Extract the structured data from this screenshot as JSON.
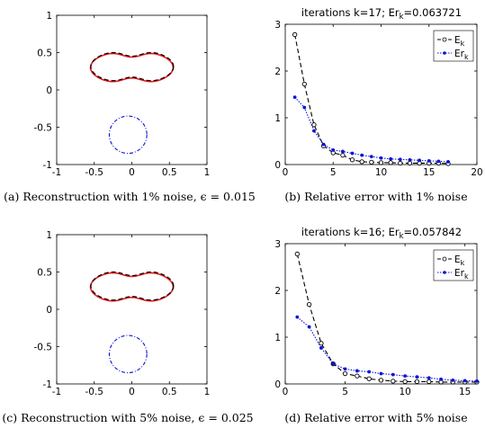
{
  "chart_data": [
    {
      "id": "a",
      "type": "line",
      "caption": "(a) Reconstruction with 1% noise, ϵ = 0.015",
      "xlim": [
        -1,
        1
      ],
      "ylim": [
        -1,
        1
      ],
      "xticks": [
        "-1",
        "-0.5",
        "0",
        "0.5",
        "1"
      ],
      "yticks": [
        "1",
        "0.5",
        "0",
        "-0.5",
        "-1"
      ],
      "shape": {
        "cx": 0,
        "cy": 0.3,
        "a": 0.55,
        "b": 0.23,
        "waist": 0.09
      },
      "circle": {
        "cx": -0.05,
        "cy": -0.6,
        "r": 0.25
      },
      "colors": {
        "exact": "#e8191c",
        "reconstructed": "#000000",
        "circle": "#0a14d8"
      }
    },
    {
      "id": "b",
      "type": "line",
      "title": "iterations k=17; Er",
      "title_sub": "k",
      "title_tail": "=0.063721",
      "caption": "(b) Relative error with 1% noise",
      "xlim": [
        0,
        20
      ],
      "ylim": [
        0,
        3
      ],
      "xticks": [
        "0",
        "5",
        "10",
        "15",
        "20"
      ],
      "yticks": [
        "3",
        "2",
        "1",
        "0"
      ],
      "legend": [
        {
          "base": "E",
          "sub": "k"
        },
        {
          "base": "Er",
          "sub": "k"
        }
      ],
      "legend_position": "top-right",
      "x": [
        1,
        2,
        3,
        4,
        5,
        6,
        7,
        8,
        9,
        10,
        11,
        12,
        13,
        14,
        15,
        16,
        17
      ],
      "series": [
        {
          "values": [
            2.78,
            1.72,
            0.85,
            0.4,
            0.25,
            0.2,
            0.1,
            0.06,
            0.05,
            0.04,
            0.04,
            0.03,
            0.03,
            0.03,
            0.03,
            0.03,
            0.02
          ],
          "color": "#000000",
          "style": "dashed",
          "marker": "circle"
        },
        {
          "values": [
            1.44,
            1.22,
            0.72,
            0.43,
            0.31,
            0.28,
            0.24,
            0.2,
            0.17,
            0.14,
            0.12,
            0.11,
            0.1,
            0.09,
            0.08,
            0.07,
            0.06
          ],
          "color": "#0a14d8",
          "style": "dotted",
          "marker": "dot"
        }
      ]
    },
    {
      "id": "c",
      "type": "line",
      "caption": "(c) Reconstruction with 5% noise, ϵ = 0.025",
      "xlim": [
        -1,
        1
      ],
      "ylim": [
        -1,
        1
      ],
      "xticks": [
        "-1",
        "-0.5",
        "0",
        "0.5",
        "1"
      ],
      "yticks": [
        "1",
        "0.5",
        "0",
        "-0.5",
        "-1"
      ],
      "shape": {
        "cx": 0,
        "cy": 0.3,
        "a": 0.55,
        "b": 0.23,
        "waist": 0.09
      },
      "circle": {
        "cx": -0.05,
        "cy": -0.6,
        "r": 0.25
      },
      "colors": {
        "exact": "#e8191c",
        "reconstructed": "#000000",
        "circle": "#0a14d8"
      }
    },
    {
      "id": "d",
      "type": "line",
      "title": "iterations k=16; Er",
      "title_sub": "k",
      "title_tail": "=0.057842",
      "caption": "(d) Relative error with 5% noise",
      "xlim": [
        0,
        16
      ],
      "ylim": [
        0,
        3
      ],
      "xticks": [
        "0",
        "5",
        "10",
        "15"
      ],
      "yticks": [
        "3",
        "2",
        "1",
        "0"
      ],
      "legend": [
        {
          "base": "E",
          "sub": "k"
        },
        {
          "base": "Er",
          "sub": "k"
        }
      ],
      "legend_position": "top-right",
      "x": [
        1,
        2,
        3,
        4,
        5,
        6,
        7,
        8,
        9,
        10,
        11,
        12,
        13,
        14,
        15,
        16
      ],
      "series": [
        {
          "values": [
            2.78,
            1.7,
            0.87,
            0.43,
            0.22,
            0.17,
            0.11,
            0.08,
            0.06,
            0.05,
            0.05,
            0.05,
            0.04,
            0.04,
            0.04,
            0.04
          ],
          "color": "#000000",
          "style": "dashed",
          "marker": "circle"
        },
        {
          "values": [
            1.43,
            1.22,
            0.77,
            0.43,
            0.32,
            0.28,
            0.26,
            0.22,
            0.2,
            0.17,
            0.15,
            0.13,
            0.1,
            0.08,
            0.07,
            0.06
          ],
          "color": "#0a14d8",
          "style": "dotted",
          "marker": "dot"
        }
      ]
    }
  ]
}
